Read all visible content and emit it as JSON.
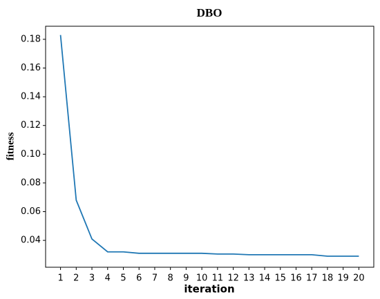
{
  "chart_data": {
    "type": "line",
    "title": "DBO",
    "x_label": "iteration",
    "y_label": "fitness",
    "x": [
      1,
      2,
      3,
      4,
      5,
      6,
      7,
      8,
      9,
      10,
      11,
      12,
      13,
      14,
      15,
      16,
      17,
      18,
      19,
      20
    ],
    "series": [
      {
        "name": "DBO",
        "color": "#1f77b4",
        "values": [
          0.183,
          0.068,
          0.041,
          0.032,
          0.032,
          0.031,
          0.031,
          0.031,
          0.031,
          0.031,
          0.0305,
          0.0305,
          0.03,
          0.03,
          0.03,
          0.03,
          0.03,
          0.029,
          0.029,
          0.029
        ]
      }
    ],
    "xlim": [
      0.05,
      20.95
    ],
    "xticks": [
      1,
      2,
      3,
      4,
      5,
      6,
      7,
      8,
      9,
      10,
      11,
      12,
      13,
      14,
      15,
      16,
      17,
      18,
      19,
      20
    ],
    "ylim": [
      0.0213,
      0.1891
    ],
    "yticks": [
      0.04,
      0.06,
      0.08,
      {
        "value": 0.1,
        "label": "0.10"
      },
      0.12,
      0.14,
      0.16,
      0.18
    ]
  }
}
